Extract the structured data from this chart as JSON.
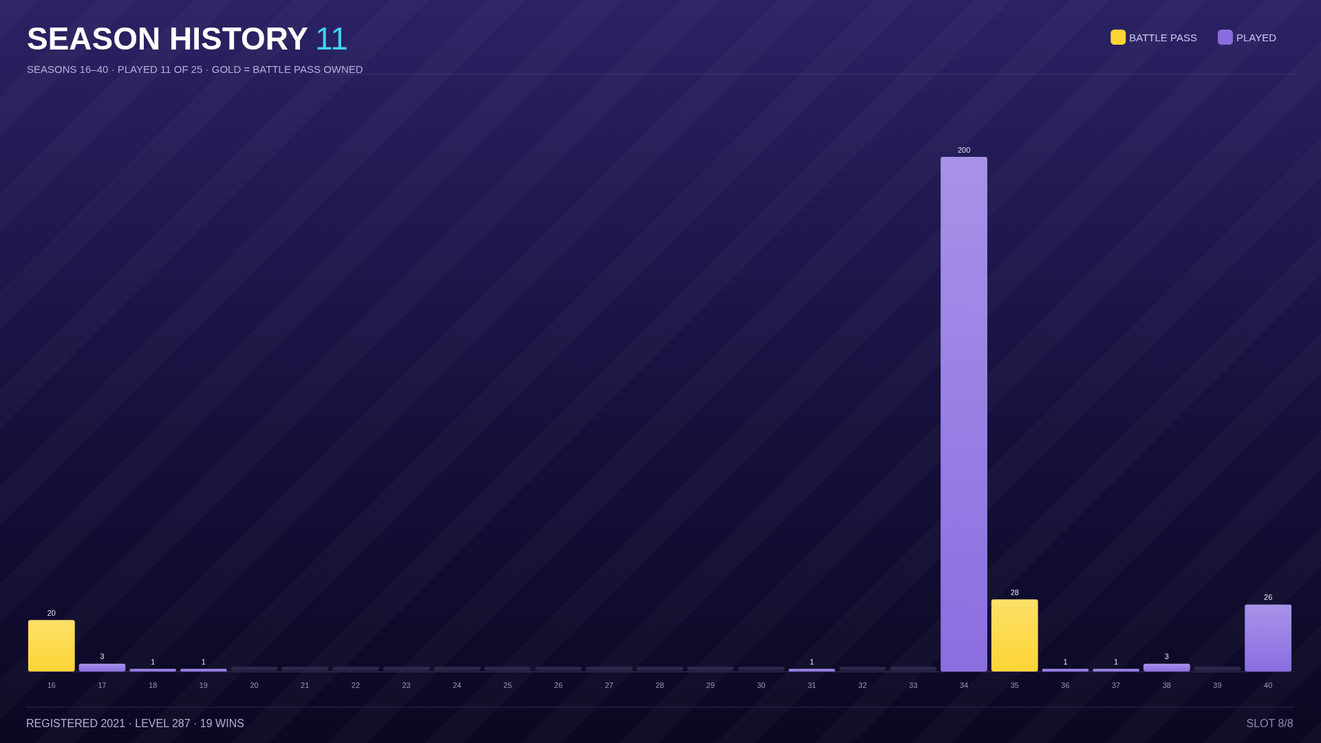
{
  "chart_data": {
    "type": "bar",
    "title": "SEASON HISTORY 11",
    "subtitle": "SEASONS 16–40 · PLAYED 11 OF 25 · GOLD = BATTLE PASS OWNED",
    "categories": [
      "16",
      "17",
      "18",
      "19",
      "20",
      "21",
      "22",
      "23",
      "24",
      "25",
      "26",
      "27",
      "28",
      "29",
      "30",
      "31",
      "32",
      "33",
      "34",
      "35",
      "36",
      "37",
      "38",
      "39",
      "40"
    ],
    "stacked": true,
    "legend": "top right",
    "series": [
      {
        "name": "BATTLE PASS",
        "color": "#fcd535",
        "values": [
          20,
          null,
          null,
          null,
          null,
          null,
          null,
          null,
          null,
          null,
          null,
          null,
          null,
          null,
          null,
          null,
          null,
          null,
          null,
          28,
          null,
          null,
          null,
          null,
          null
        ],
        "value_labels": [
          "20",
          null,
          null,
          null,
          null,
          null,
          null,
          null,
          null,
          null,
          null,
          null,
          null,
          null,
          null,
          null,
          null,
          null,
          null,
          "28",
          null,
          null,
          null,
          null,
          null
        ]
      },
      {
        "name": "PLAYED",
        "color": "#8a6ee0",
        "values": [
          null,
          3,
          1,
          1,
          0,
          0,
          0,
          0,
          0,
          0,
          0,
          0,
          0,
          0,
          0,
          1,
          0,
          0,
          200,
          null,
          1,
          1,
          3,
          0,
          26
        ],
        "value_labels": [
          null,
          "3",
          "1",
          "1",
          null,
          null,
          null,
          null,
          null,
          null,
          null,
          null,
          null,
          null,
          null,
          "1",
          null,
          null,
          "200",
          null,
          "1",
          "1",
          "3",
          null,
          "26"
        ]
      }
    ],
    "annotations": [
      "REGISTERED 2021 · LEVEL 287 · 19 WINS",
      "SLOT 8/8"
    ]
  }
}
